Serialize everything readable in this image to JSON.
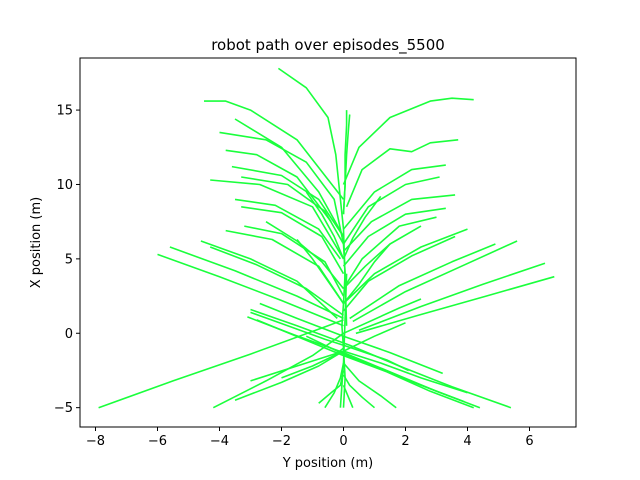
{
  "chart_data": {
    "type": "line",
    "title": "robot path over episodes_5500",
    "xlabel": "Y position (m)",
    "ylabel": "X position (m)",
    "xlim": [
      -8.5,
      7.5
    ],
    "ylim": [
      -6.3,
      18.5
    ],
    "xticks": [
      -8,
      -6,
      -4,
      -2,
      0,
      2,
      4,
      6
    ],
    "yticks": [
      -5,
      0,
      5,
      10,
      15
    ],
    "grid": false,
    "line_color": "#1aff3c",
    "series": [
      {
        "x": [
          -2.1,
          -1.2,
          -0.5,
          -0.25,
          0.0,
          0.1
        ],
        "y": [
          17.8,
          16.5,
          14.5,
          12.0,
          7.0,
          0.5
        ]
      },
      {
        "x": [
          -4.5,
          -3.8,
          -3.0,
          -1.5,
          0.0
        ],
        "y": [
          15.6,
          15.6,
          15.0,
          13.0,
          9.0
        ]
      },
      {
        "x": [
          4.2,
          3.5,
          2.8,
          1.5,
          0.5,
          0.0
        ],
        "y": [
          15.7,
          15.8,
          15.6,
          14.5,
          12.5,
          10.0
        ]
      },
      {
        "x": [
          -3.5,
          -2.0,
          -0.8,
          0.0
        ],
        "y": [
          14.4,
          12.5,
          9.5,
          6.5
        ]
      },
      {
        "x": [
          -4.0,
          -2.5,
          -1.2,
          -0.3,
          0.0
        ],
        "y": [
          13.5,
          13.0,
          11.5,
          9.0,
          6.0
        ]
      },
      {
        "x": [
          3.7,
          2.8,
          2.2,
          1.5,
          0.6,
          0.1
        ],
        "y": [
          13.0,
          12.8,
          12.2,
          12.4,
          11.0,
          8.5
        ]
      },
      {
        "x": [
          -3.8,
          -2.8,
          -1.5,
          -0.4
        ],
        "y": [
          12.3,
          12.0,
          10.5,
          7.5
        ]
      },
      {
        "x": [
          -3.6,
          -2.0,
          -0.8,
          0.0
        ],
        "y": [
          11.2,
          10.6,
          9.0,
          6.5
        ]
      },
      {
        "x": [
          3.3,
          2.2,
          1.0,
          0.0
        ],
        "y": [
          11.3,
          11.0,
          9.5,
          7.0
        ]
      },
      {
        "x": [
          -3.3,
          -1.8,
          -0.6,
          0.0
        ],
        "y": [
          10.5,
          10.0,
          8.2,
          6.0
        ]
      },
      {
        "x": [
          3.1,
          2.0,
          0.8,
          0.0
        ],
        "y": [
          10.5,
          10.0,
          8.5,
          6.0
        ]
      },
      {
        "x": [
          -4.3,
          -2.7,
          -1.0,
          0.0
        ],
        "y": [
          10.3,
          10.0,
          8.5,
          5.0
        ]
      },
      {
        "x": [
          -3.5,
          -2.2,
          -0.8,
          -0.1
        ],
        "y": [
          9.0,
          8.6,
          7.0,
          5.0
        ]
      },
      {
        "x": [
          -3.3,
          -2.0,
          -0.7,
          0.0
        ],
        "y": [
          8.5,
          8.1,
          6.5,
          4.0
        ]
      },
      {
        "x": [
          3.6,
          2.2,
          0.9,
          0.0
        ],
        "y": [
          9.3,
          9.0,
          7.5,
          5.5
        ]
      },
      {
        "x": [
          3.3,
          2.0,
          0.8,
          0.0
        ],
        "y": [
          8.4,
          8.0,
          6.5,
          4.5
        ]
      },
      {
        "x": [
          -3.8,
          -2.3,
          -0.8,
          0.0
        ],
        "y": [
          6.9,
          6.3,
          4.5,
          2.0
        ]
      },
      {
        "x": [
          -3.2,
          -2.0,
          -0.6,
          0.0
        ],
        "y": [
          7.2,
          6.7,
          4.8,
          2.5
        ]
      },
      {
        "x": [
          3.0,
          1.8,
          0.6,
          0.0
        ],
        "y": [
          7.8,
          7.2,
          5.0,
          3.0
        ]
      },
      {
        "x": [
          4.0,
          2.5,
          1.0,
          0.0
        ],
        "y": [
          7.0,
          5.8,
          4.0,
          2.0
        ]
      },
      {
        "x": [
          3.6,
          2.2,
          0.8,
          0.0
        ],
        "y": [
          6.5,
          5.2,
          3.5,
          1.5
        ]
      },
      {
        "x": [
          -4.6,
          -3.0,
          -1.5,
          -0.2
        ],
        "y": [
          6.2,
          5.0,
          3.5,
          1.0
        ]
      },
      {
        "x": [
          -4.3,
          -2.8,
          -1.2,
          0.0
        ],
        "y": [
          5.8,
          4.6,
          3.0,
          1.2
        ]
      },
      {
        "x": [
          4.9,
          3.5,
          1.8,
          0.2
        ],
        "y": [
          6.0,
          4.8,
          3.2,
          1.0
        ]
      },
      {
        "x": [
          5.6,
          3.8,
          2.0,
          0.3
        ],
        "y": [
          6.2,
          4.5,
          2.8,
          0.8
        ]
      },
      {
        "x": [
          -5.6,
          -3.5,
          -1.5,
          0.0
        ],
        "y": [
          5.8,
          4.2,
          2.5,
          1.0
        ]
      },
      {
        "x": [
          -6.0,
          -4.0,
          -2.0,
          0.0
        ],
        "y": [
          5.3,
          3.8,
          2.2,
          0.5
        ]
      },
      {
        "x": [
          6.5,
          4.5,
          2.5,
          0.5
        ],
        "y": [
          4.7,
          3.3,
          1.8,
          0.2
        ]
      },
      {
        "x": [
          6.8,
          4.6,
          2.4,
          0.4
        ],
        "y": [
          3.8,
          2.5,
          1.2,
          0.0
        ]
      },
      {
        "x": [
          -7.9,
          -5.5,
          -3.0,
          -0.5,
          0.0
        ],
        "y": [
          -5.0,
          -3.2,
          -1.4,
          0.5,
          0.9
        ]
      },
      {
        "x": [
          -4.2,
          -2.5,
          -1.0,
          0.0,
          1.8,
          2.5
        ],
        "y": [
          -5.0,
          -3.2,
          -1.5,
          0.0,
          1.7,
          2.3
        ]
      },
      {
        "x": [
          -3.0,
          -1.8,
          -0.6,
          0.0,
          1.4,
          2.1
        ],
        "y": [
          1.4,
          0.5,
          -0.4,
          -0.8,
          -1.8,
          -2.5
        ]
      },
      {
        "x": [
          -2.7,
          -1.5,
          0.0,
          1.5,
          3.2
        ],
        "y": [
          2.0,
          1.0,
          -0.2,
          -1.3,
          -2.7
        ]
      },
      {
        "x": [
          -3.0,
          -1.2,
          0.0,
          1.2,
          2.5,
          4.0
        ],
        "y": [
          -3.2,
          -2.0,
          -1.2,
          -2.0,
          -3.0,
          -4.0
        ]
      },
      {
        "x": [
          5.4,
          3.5,
          1.8,
          0.2,
          -1.5,
          -3.0
        ],
        "y": [
          -5.0,
          -3.6,
          -2.2,
          -0.8,
          0.5,
          1.6
        ]
      },
      {
        "x": [
          4.4,
          3.0,
          1.5,
          0.0,
          -1.6,
          -3.1
        ],
        "y": [
          -5.0,
          -3.9,
          -2.6,
          -1.3,
          -0.1,
          1.1
        ]
      },
      {
        "x": [
          4.2,
          2.8,
          1.4,
          0.0,
          -1.4,
          -2.8
        ],
        "y": [
          -5.0,
          -3.9,
          -2.6,
          -1.5,
          -0.3,
          0.9
        ]
      },
      {
        "x": [
          3.9,
          2.5,
          1.2,
          0.0,
          -1.2
        ],
        "y": [
          -4.6,
          -3.5,
          -2.4,
          -1.4,
          -0.2
        ]
      },
      {
        "x": [
          -3.5,
          -2.0,
          -0.8,
          0.0,
          1.0,
          2.0
        ],
        "y": [
          -4.5,
          -3.3,
          -2.2,
          -1.2,
          -0.2,
          0.7
        ]
      },
      {
        "x": [
          -2.0,
          -1.0,
          -0.3,
          0.0
        ],
        "y": [
          -3.0,
          -2.2,
          -1.5,
          -1.0
        ]
      },
      {
        "x": [
          0.0,
          0.05,
          0.0,
          -0.05,
          0.0,
          0.05,
          0.0
        ],
        "y": [
          -5.0,
          -3.0,
          -1.0,
          0.5,
          2.0,
          4.0,
          6.0
        ]
      },
      {
        "x": [
          -0.1,
          -0.05,
          0.0,
          0.05,
          0.1
        ],
        "y": [
          -5.0,
          -3.5,
          -2.0,
          1.0,
          4.0
        ]
      },
      {
        "x": [
          -0.6,
          -0.3,
          -0.1,
          0.0
        ],
        "y": [
          -5.0,
          -4.0,
          -3.0,
          -2.0
        ]
      },
      {
        "x": [
          1.7,
          1.2,
          0.5,
          0.0
        ],
        "y": [
          -5.0,
          -4.2,
          -3.2,
          -2.0
        ]
      },
      {
        "x": [
          1.0,
          0.6,
          0.2,
          0.0
        ],
        "y": [
          -5.0,
          -4.3,
          -3.5,
          -2.8
        ]
      },
      {
        "x": [
          -0.8,
          -0.4,
          -0.1,
          0.0
        ],
        "y": [
          -4.7,
          -4.0,
          -3.5,
          -2.5
        ]
      },
      {
        "x": [
          0.3,
          0.2,
          0.1,
          0.0
        ],
        "y": [
          -5.0,
          -4.5,
          -4.0,
          -3.5
        ]
      },
      {
        "x": [
          0.1,
          0.1,
          0.05,
          0.05,
          0.0
        ],
        "y": [
          15.0,
          14.0,
          12.0,
          10.0,
          8.0
        ]
      },
      {
        "x": [
          0.2,
          0.15,
          0.1,
          0.05,
          0.0
        ],
        "y": [
          14.7,
          13.5,
          12.0,
          10.0,
          8.0
        ]
      },
      {
        "x": [
          -1.5,
          -1.0,
          -0.5,
          0.0
        ],
        "y": [
          6.3,
          5.0,
          3.5,
          2.0
        ]
      },
      {
        "x": [
          1.5,
          1.0,
          0.5,
          0.0
        ],
        "y": [
          6.0,
          4.8,
          3.3,
          2.0
        ]
      },
      {
        "x": [
          -2.5,
          -1.5,
          -0.7,
          0.0
        ],
        "y": [
          7.5,
          6.2,
          4.8,
          3.0
        ]
      },
      {
        "x": [
          2.5,
          1.5,
          0.7,
          0.0
        ],
        "y": [
          7.2,
          6.0,
          4.5,
          3.0
        ]
      },
      {
        "x": [
          -1.2,
          -0.7,
          -0.3,
          0.0
        ],
        "y": [
          9.5,
          8.0,
          6.5,
          5.0
        ]
      },
      {
        "x": [
          1.2,
          0.7,
          0.3,
          0.0
        ],
        "y": [
          9.2,
          7.8,
          6.4,
          5.0
        ]
      }
    ]
  }
}
